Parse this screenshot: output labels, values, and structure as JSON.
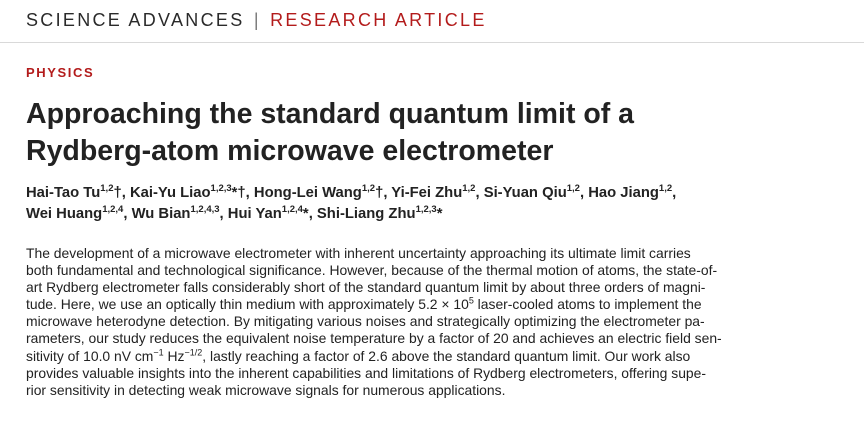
{
  "header": {
    "journal": "SCIENCE ADVANCES",
    "separator": "|",
    "article_type": "RESEARCH ARTICLE"
  },
  "section": "PHYSICS",
  "title": {
    "line1": "Approaching the standard quantum limit of a",
    "line2": "Rydberg-atom microwave electrometer"
  },
  "authors": {
    "line1": [
      {
        "name": "Hai-Tao Tu",
        "sup": "1,2",
        "mark": "†",
        "after": ", "
      },
      {
        "name": "Kai-Yu Liao",
        "sup": "1,2,3",
        "mark": "*†",
        "after": ", "
      },
      {
        "name": "Hong-Lei Wang",
        "sup": "1,2",
        "mark": "†",
        "after": ", "
      },
      {
        "name": "Yi-Fei Zhu",
        "sup": "1,2",
        "mark": "",
        "after": ", "
      },
      {
        "name": "Si-Yuan Qiu",
        "sup": "1,2",
        "mark": "",
        "after": ", "
      },
      {
        "name": "Hao Jiang",
        "sup": "1,2",
        "mark": "",
        "after": ","
      }
    ],
    "line2": [
      {
        "name": "Wei Huang",
        "sup": "1,2,4",
        "mark": "",
        "after": ", "
      },
      {
        "name": "Wu Bian",
        "sup": "1,2,4,3",
        "mark": "",
        "after": ", "
      },
      {
        "name": "Hui Yan",
        "sup": "1,2,4",
        "mark": "*",
        "after": ", "
      },
      {
        "name": "Shi-Liang Zhu",
        "sup": "1,2,3",
        "mark": "*",
        "after": ""
      }
    ]
  },
  "abstract": {
    "l1": "The development of a microwave electrometer with inherent uncertainty approaching its ultimate limit carries",
    "l2": "both fundamental and technological significance. However, because of the thermal motion of atoms, the state-of-",
    "l3": "art Rydberg electrometer falls considerably short of the standard quantum limit by about three orders of magni-",
    "l4": "tude. Here, we use an optically thin medium with approximately 5.2 × 10",
    "l4_sup": "5",
    "l4_end": " laser-cooled atoms to implement the",
    "l5": "microwave heterodyne detection. By mitigating various noises and strategically optimizing the electrometer pa-",
    "l6": "rameters, our study reduces the equivalent noise temperature by a factor of 20 and achieves an electric field sen-",
    "l7_a": "sitivity of 10.0 nV cm",
    "l7_sup1": "−1",
    "l7_b": " Hz",
    "l7_sup2": "−1/2",
    "l7_c": ", lastly reaching a factor of 2.6 above the standard quantum limit. Our work also",
    "l8": "provides valuable insights into the inherent capabilities and limitations of Rydberg electrometers, offering supe-",
    "l9": "rior sensitivity in detecting weak microwave signals for numerous applications."
  }
}
